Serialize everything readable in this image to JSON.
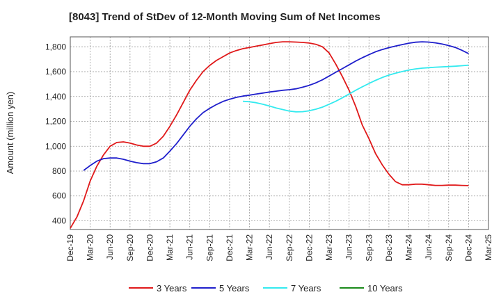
{
  "chart_data": {
    "type": "line",
    "title": "[8043]  Trend of StDev of 12-Month Moving Sum of Net Incomes",
    "xlabel": "",
    "ylabel": "Amount (million yen)",
    "ylim": [
      330,
      1880
    ],
    "yticks": [
      400,
      600,
      800,
      1000,
      1200,
      1400,
      1600,
      1800
    ],
    "ytick_labels": [
      "400",
      "600",
      "800",
      "1,000",
      "1,200",
      "1,400",
      "1,600",
      "1,800"
    ],
    "xticks": [
      "Dec-19",
      "Mar-20",
      "Jun-20",
      "Sep-20",
      "Dec-20",
      "Mar-21",
      "Jun-21",
      "Sep-21",
      "Dec-21",
      "Mar-22",
      "Jun-22",
      "Sep-22",
      "Dec-22",
      "Mar-23",
      "Jun-23",
      "Sep-23",
      "Dec-23",
      "Mar-24",
      "Jun-24",
      "Sep-24",
      "Dec-24",
      "Mar-25"
    ],
    "grid": true,
    "legend_position": "bottom",
    "series": [
      {
        "name": "3 Years",
        "color": "#e0191a",
        "points": [
          [
            0,
            340
          ],
          [
            1,
            430
          ],
          [
            2,
            560
          ],
          [
            3,
            720
          ],
          [
            4,
            840
          ],
          [
            5,
            930
          ],
          [
            6,
            1000
          ],
          [
            7,
            1030
          ],
          [
            8,
            1035
          ],
          [
            9,
            1025
          ],
          [
            10,
            1010
          ],
          [
            11,
            1000
          ],
          [
            12,
            1000
          ],
          [
            13,
            1025
          ],
          [
            14,
            1080
          ],
          [
            15,
            1160
          ],
          [
            16,
            1250
          ],
          [
            17,
            1350
          ],
          [
            18,
            1450
          ],
          [
            19,
            1530
          ],
          [
            20,
            1600
          ],
          [
            21,
            1650
          ],
          [
            22,
            1690
          ],
          [
            23,
            1720
          ],
          [
            24,
            1750
          ],
          [
            25,
            1770
          ],
          [
            26,
            1785
          ],
          [
            27,
            1795
          ],
          [
            28,
            1805
          ],
          [
            29,
            1815
          ],
          [
            30,
            1825
          ],
          [
            31,
            1835
          ],
          [
            32,
            1840
          ],
          [
            33,
            1840
          ],
          [
            34,
            1838
          ],
          [
            35,
            1835
          ],
          [
            36,
            1830
          ],
          [
            37,
            1820
          ],
          [
            38,
            1800
          ],
          [
            39,
            1750
          ],
          [
            40,
            1660
          ],
          [
            41,
            1560
          ],
          [
            42,
            1450
          ],
          [
            43,
            1320
          ],
          [
            44,
            1170
          ],
          [
            45,
            1060
          ],
          [
            46,
            940
          ],
          [
            47,
            850
          ],
          [
            48,
            775
          ],
          [
            49,
            715
          ],
          [
            50,
            690
          ],
          [
            51,
            690
          ],
          [
            52,
            695
          ],
          [
            53,
            695
          ],
          [
            54,
            690
          ],
          [
            55,
            685
          ],
          [
            56,
            685
          ],
          [
            57,
            687
          ],
          [
            58,
            687
          ],
          [
            59,
            685
          ],
          [
            60,
            683
          ]
        ]
      },
      {
        "name": "5 Years",
        "color": "#1f1fcc",
        "points": [
          [
            2,
            805
          ],
          [
            3,
            845
          ],
          [
            4,
            880
          ],
          [
            5,
            900
          ],
          [
            6,
            905
          ],
          [
            7,
            905
          ],
          [
            8,
            895
          ],
          [
            9,
            880
          ],
          [
            10,
            868
          ],
          [
            11,
            860
          ],
          [
            12,
            860
          ],
          [
            13,
            875
          ],
          [
            14,
            905
          ],
          [
            15,
            960
          ],
          [
            16,
            1020
          ],
          [
            17,
            1090
          ],
          [
            18,
            1160
          ],
          [
            19,
            1220
          ],
          [
            20,
            1270
          ],
          [
            21,
            1305
          ],
          [
            22,
            1335
          ],
          [
            23,
            1360
          ],
          [
            24,
            1378
          ],
          [
            25,
            1393
          ],
          [
            26,
            1403
          ],
          [
            27,
            1411
          ],
          [
            28,
            1420
          ],
          [
            29,
            1428
          ],
          [
            30,
            1436
          ],
          [
            31,
            1443
          ],
          [
            32,
            1450
          ],
          [
            33,
            1455
          ],
          [
            34,
            1462
          ],
          [
            35,
            1475
          ],
          [
            36,
            1490
          ],
          [
            37,
            1510
          ],
          [
            38,
            1535
          ],
          [
            39,
            1565
          ],
          [
            40,
            1595
          ],
          [
            41,
            1625
          ],
          [
            42,
            1655
          ],
          [
            43,
            1685
          ],
          [
            44,
            1712
          ],
          [
            45,
            1737
          ],
          [
            46,
            1760
          ],
          [
            47,
            1778
          ],
          [
            48,
            1793
          ],
          [
            49,
            1806
          ],
          [
            50,
            1818
          ],
          [
            51,
            1829
          ],
          [
            52,
            1837
          ],
          [
            53,
            1840
          ],
          [
            54,
            1838
          ],
          [
            55,
            1832
          ],
          [
            56,
            1823
          ],
          [
            57,
            1810
          ],
          [
            58,
            1795
          ],
          [
            59,
            1772
          ],
          [
            60,
            1745
          ]
        ]
      },
      {
        "name": "7 Years",
        "color": "#33eaef",
        "points": [
          [
            26,
            1362
          ],
          [
            27,
            1358
          ],
          [
            28,
            1350
          ],
          [
            29,
            1338
          ],
          [
            30,
            1324
          ],
          [
            31,
            1308
          ],
          [
            32,
            1295
          ],
          [
            33,
            1283
          ],
          [
            34,
            1277
          ],
          [
            35,
            1278
          ],
          [
            36,
            1285
          ],
          [
            37,
            1298
          ],
          [
            38,
            1315
          ],
          [
            39,
            1338
          ],
          [
            40,
            1362
          ],
          [
            41,
            1390
          ],
          [
            42,
            1420
          ],
          [
            43,
            1450
          ],
          [
            44,
            1478
          ],
          [
            45,
            1505
          ],
          [
            46,
            1530
          ],
          [
            47,
            1553
          ],
          [
            48,
            1572
          ],
          [
            49,
            1588
          ],
          [
            50,
            1601
          ],
          [
            51,
            1613
          ],
          [
            52,
            1622
          ],
          [
            53,
            1628
          ],
          [
            54,
            1632
          ],
          [
            55,
            1636
          ],
          [
            56,
            1638
          ],
          [
            57,
            1641
          ],
          [
            58,
            1644
          ],
          [
            59,
            1648
          ],
          [
            60,
            1652
          ]
        ]
      },
      {
        "name": "10 Years",
        "color": "#1a8a1a",
        "points": []
      }
    ]
  }
}
